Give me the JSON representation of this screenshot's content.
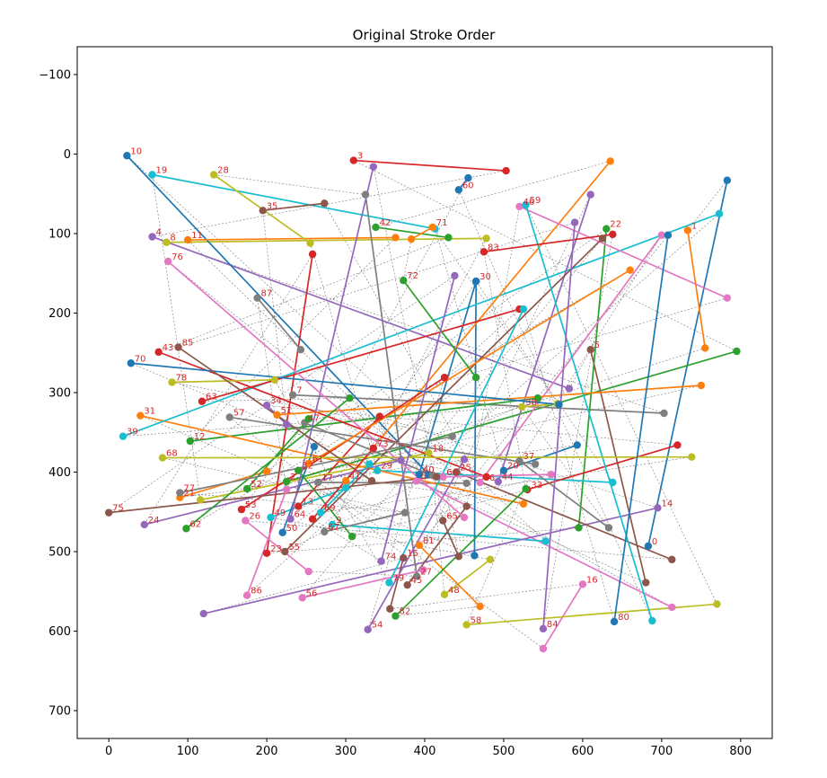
{
  "chart_data": {
    "type": "line",
    "title": "Original Stroke Order",
    "xlabel": "",
    "ylabel": "",
    "xlim": [
      -40,
      840
    ],
    "ylim": [
      735,
      -135
    ],
    "y_inverted": true,
    "grid": false,
    "legend": "none",
    "x_ticks": [
      0,
      100,
      200,
      300,
      400,
      500,
      600,
      700,
      800
    ],
    "y_ticks": [
      -100,
      0,
      100,
      200,
      300,
      400,
      500,
      600,
      700
    ],
    "y_tick_labels": [
      "−100",
      "0",
      "100",
      "200",
      "300",
      "400",
      "500",
      "600",
      "700"
    ],
    "palette": [
      "#1f77b4",
      "#ff7f0e",
      "#2ca02c",
      "#d62728",
      "#9467bd",
      "#8c564b",
      "#e377c2",
      "#7f7f7f",
      "#bcbd22",
      "#17becf"
    ],
    "label_color": "#d62728",
    "connector_color": "#555555",
    "strokes": [
      {
        "label": "0",
        "start": [
          683,
          493
        ],
        "end": [
          783,
          33
        ]
      },
      {
        "label": "1",
        "start": [
          733,
          96
        ],
        "end": [
          755,
          244
        ]
      },
      {
        "label": "2",
        "start": [
          225,
          412
        ],
        "end": [
          795,
          248
        ]
      },
      {
        "label": "3",
        "start": [
          310,
          8
        ],
        "end": [
          503,
          21
        ]
      },
      {
        "label": "4",
        "start": [
          55,
          104
        ],
        "end": [
          583,
          295
        ]
      },
      {
        "label": "5",
        "start": [
          610,
          246
        ],
        "end": [
          680,
          539
        ]
      },
      {
        "label": "6",
        "start": [
          390,
          411
        ],
        "end": [
          713,
          570
        ]
      },
      {
        "label": "7",
        "start": [
          233,
          303
        ],
        "end": [
          703,
          326
        ]
      },
      {
        "label": "8",
        "start": [
          73,
          111
        ],
        "end": [
          478,
          106
        ]
      },
      {
        "label": "9",
        "start": [
          283,
          466
        ],
        "end": [
          553,
          487
        ]
      },
      {
        "label": "10",
        "start": [
          23,
          2
        ],
        "end": [
          405,
          403
        ]
      },
      {
        "label": "11",
        "start": [
          100,
          108
        ],
        "end": [
          363,
          105
        ]
      },
      {
        "label": "12",
        "start": [
          103,
          361
        ],
        "end": [
          543,
          307
        ]
      },
      {
        "label": "13",
        "start": [
          240,
          443
        ],
        "end": [
          343,
          330
        ]
      },
      {
        "label": "14",
        "start": [
          695,
          445
        ],
        "end": [
          120,
          578
        ]
      },
      {
        "label": "15",
        "start": [
          373,
          508
        ],
        "end": [
          356,
          572
        ]
      },
      {
        "label": "16",
        "start": [
          600,
          541
        ],
        "end": [
          550,
          622
        ]
      },
      {
        "label": "17",
        "start": [
          265,
          413
        ],
        "end": [
          453,
          414
        ]
      },
      {
        "label": "18",
        "start": [
          405,
          376
        ],
        "end": [
          116,
          435
        ]
      },
      {
        "label": "19",
        "start": [
          55,
          26
        ],
        "end": [
          413,
          94
        ]
      },
      {
        "label": "20",
        "start": [
          500,
          398
        ],
        "end": [
          593,
          366
        ]
      },
      {
        "label": "21",
        "start": [
          90,
          432
        ],
        "end": [
          200,
          399
        ]
      },
      {
        "label": "22",
        "start": [
          630,
          94
        ],
        "end": [
          595,
          470
        ]
      },
      {
        "label": "23",
        "start": [
          200,
          502
        ],
        "end": [
          258,
          126
        ]
      },
      {
        "label": "24",
        "start": [
          45,
          466
        ],
        "end": [
          370,
          385
        ]
      },
      {
        "label": "25",
        "start": [
          440,
          400
        ],
        "end": [
          713,
          510
        ]
      },
      {
        "label": "26",
        "start": [
          173,
          461
        ],
        "end": [
          253,
          525
        ]
      },
      {
        "label": "27",
        "start": [
          390,
          531
        ],
        "end": [
          325,
          51
        ]
      },
      {
        "label": "28",
        "start": [
          133,
          26
        ],
        "end": [
          255,
          112
        ]
      },
      {
        "label": "29",
        "start": [
          340,
          398
        ],
        "end": [
          638,
          413
        ]
      },
      {
        "label": "30",
        "start": [
          465,
          160
        ],
        "end": [
          463,
          505
        ]
      },
      {
        "label": "31",
        "start": [
          40,
          329
        ],
        "end": [
          525,
          440
        ]
      },
      {
        "label": "32",
        "start": [
          240,
          398
        ],
        "end": [
          308,
          481
        ]
      },
      {
        "label": "33",
        "start": [
          530,
          422
        ],
        "end": [
          720,
          366
        ]
      },
      {
        "label": "34",
        "start": [
          200,
          316
        ],
        "end": [
          225,
          340
        ]
      },
      {
        "label": "35",
        "start": [
          195,
          71
        ],
        "end": [
          273,
          62
        ]
      },
      {
        "label": "36",
        "start": [
          470,
          413
        ],
        "end": [
          700,
          102
        ]
      },
      {
        "label": "37",
        "start": [
          520,
          386
        ],
        "end": [
          633,
          470
        ]
      },
      {
        "label": "38",
        "start": [
          523,
          318
        ],
        "end": [
          568,
          314
        ]
      },
      {
        "label": "39",
        "start": [
          18,
          355
        ],
        "end": [
          773,
          75
        ]
      },
      {
        "label": "40",
        "start": [
          393,
          403
        ],
        "end": [
          465,
          160
        ]
      },
      {
        "label": "41",
        "start": [
          300,
          411
        ],
        "end": [
          635,
          9
        ]
      },
      {
        "label": "42",
        "start": [
          338,
          92
        ],
        "end": [
          430,
          105
        ]
      },
      {
        "label": "43",
        "start": [
          63,
          249
        ],
        "end": [
          478,
          406
        ]
      },
      {
        "label": "44",
        "start": [
          493,
          412
        ],
        "end": [
          610,
          51
        ]
      },
      {
        "label": "45",
        "start": [
          378,
          542
        ],
        "end": [
          453,
          443
        ]
      },
      {
        "label": "46",
        "start": [
          520,
          66
        ],
        "end": [
          783,
          181
        ]
      },
      {
        "label": "47",
        "start": [
          248,
          338
        ],
        "end": [
          410,
          404
        ]
      },
      {
        "label": "48",
        "start": [
          425,
          554
        ],
        "end": [
          483,
          510
        ]
      },
      {
        "label": "49",
        "start": [
          205,
          457
        ],
        "end": [
          300,
          420
        ]
      },
      {
        "label": "50",
        "start": [
          220,
          476
        ],
        "end": [
          260,
          368
        ]
      },
      {
        "label": "51",
        "start": [
          213,
          328
        ],
        "end": [
          750,
          291
        ]
      },
      {
        "label": "52",
        "start": [
          175,
          421
        ],
        "end": [
          253,
          333
        ]
      },
      {
        "label": "53",
        "start": [
          168,
          447
        ],
        "end": [
          425,
          281
        ]
      },
      {
        "label": "54",
        "start": [
          328,
          598
        ],
        "end": [
          450,
          384
        ]
      },
      {
        "label": "55",
        "start": [
          223,
          500
        ],
        "end": [
          625,
          106
        ]
      },
      {
        "label": "56",
        "start": [
          245,
          558
        ],
        "end": [
          398,
          523
        ]
      },
      {
        "label": "57",
        "start": [
          153,
          331
        ],
        "end": [
          540,
          390
        ]
      },
      {
        "label": "58",
        "start": [
          453,
          592
        ],
        "end": [
          770,
          566
        ]
      },
      {
        "label": "59",
        "start": [
          528,
          64
        ],
        "end": [
          688,
          587
        ]
      },
      {
        "label": "60",
        "start": [
          443,
          45
        ],
        "end": [
          455,
          30
        ]
      },
      {
        "label": "61",
        "start": [
          253,
          389
        ],
        "end": [
          660,
          146
        ]
      },
      {
        "label": "62",
        "start": [
          98,
          471
        ],
        "end": [
          305,
          307
        ]
      },
      {
        "label": "63",
        "start": [
          118,
          311
        ],
        "end": [
          520,
          195
        ]
      },
      {
        "label": "64",
        "start": [
          230,
          459
        ],
        "end": [
          335,
          16
        ]
      },
      {
        "label": "65",
        "start": [
          423,
          461
        ],
        "end": [
          443,
          506
        ]
      },
      {
        "label": "66",
        "start": [
          423,
          406
        ],
        "end": [
          560,
          403
        ]
      },
      {
        "label": "67",
        "start": [
          273,
          475
        ],
        "end": [
          375,
          451
        ]
      },
      {
        "label": "68",
        "start": [
          68,
          382
        ],
        "end": [
          738,
          381
        ]
      },
      {
        "label": "69",
        "start": [
          268,
          451
        ],
        "end": [
          330,
          390
        ]
      },
      {
        "label": "70",
        "start": [
          28,
          263
        ],
        "end": [
          570,
          315
        ]
      },
      {
        "label": "71",
        "start": [
          410,
          92
        ],
        "end": [
          383,
          107
        ]
      },
      {
        "label": "72",
        "start": [
          373,
          159
        ],
        "end": [
          465,
          281
        ]
      },
      {
        "label": "73",
        "start": [
          335,
          370
        ],
        "end": [
          258,
          459
        ]
      },
      {
        "label": "74",
        "start": [
          345,
          512
        ],
        "end": [
          438,
          153
        ]
      },
      {
        "label": "75",
        "start": [
          0,
          451
        ],
        "end": [
          415,
          406
        ]
      },
      {
        "label": "76",
        "start": [
          75,
          135
        ],
        "end": [
          450,
          457
        ]
      },
      {
        "label": "77",
        "start": [
          90,
          426
        ],
        "end": [
          435,
          355
        ]
      },
      {
        "label": "78",
        "start": [
          80,
          287
        ],
        "end": [
          210,
          284
        ]
      },
      {
        "label": "79",
        "start": [
          355,
          539
        ],
        "end": [
          525,
          195
        ]
      },
      {
        "label": "80",
        "start": [
          640,
          588
        ],
        "end": [
          708,
          102
        ]
      },
      {
        "label": "81",
        "start": [
          393,
          492
        ],
        "end": [
          470,
          569
        ]
      },
      {
        "label": "82",
        "start": [
          363,
          581
        ],
        "end": [
          528,
          421
        ]
      },
      {
        "label": "83",
        "start": [
          475,
          123
        ],
        "end": [
          638,
          101
        ]
      },
      {
        "label": "84",
        "start": [
          550,
          597
        ],
        "end": [
          590,
          86
        ]
      },
      {
        "label": "85",
        "start": [
          88,
          243
        ],
        "end": [
          333,
          411
        ]
      },
      {
        "label": "86",
        "start": [
          175,
          555
        ],
        "end": [
          225,
          422
        ]
      },
      {
        "label": "87",
        "start": [
          188,
          181
        ],
        "end": [
          243,
          246
        ]
      }
    ]
  }
}
